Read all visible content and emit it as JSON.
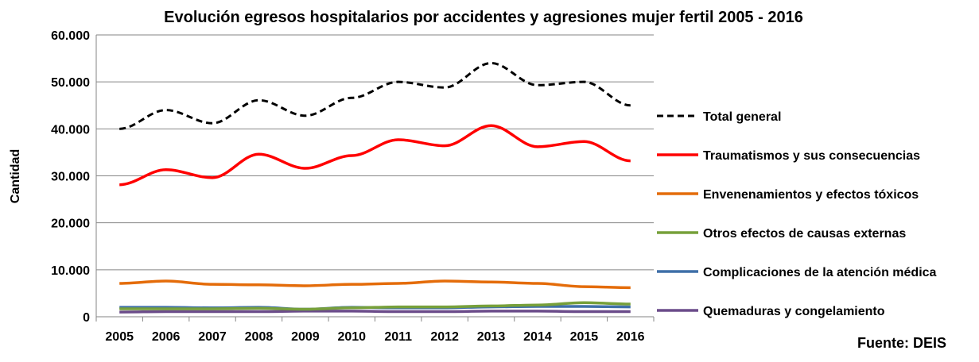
{
  "chart_data": {
    "type": "line",
    "title": "Evolución egresos hospitalarios por accidentes y agresiones mujer fertil 2005 - 2016",
    "xlabel": "",
    "ylabel": "Cantidad",
    "ylim": [
      0,
      60000
    ],
    "yticks": [
      0,
      10000,
      20000,
      30000,
      40000,
      50000,
      60000
    ],
    "ytick_labels": [
      "0",
      "10.000",
      "20.000",
      "30.000",
      "40.000",
      "50.000",
      "60.000"
    ],
    "grid": true,
    "legend_placement": "right",
    "source": "Fuente: DEIS",
    "categories": [
      "2005",
      "2006",
      "2007",
      "2008",
      "2009",
      "2010",
      "2011",
      "2012",
      "2013",
      "2014",
      "2015",
      "2016"
    ],
    "series": [
      {
        "name": "Total general",
        "color": "#000000",
        "dashed": true,
        "values": [
          40000,
          44000,
          41200,
          46100,
          42800,
          46600,
          50000,
          48800,
          54000,
          49300,
          50000,
          45000
        ]
      },
      {
        "name": "Traumatismos y sus consecuencias",
        "color": "#FF0000",
        "values": [
          28100,
          31300,
          29600,
          34600,
          31600,
          34300,
          37700,
          36400,
          40700,
          36200,
          37300,
          33200
        ]
      },
      {
        "name": "Envenenamientos y efectos tóxicos",
        "color": "#E46C0A",
        "values": [
          7100,
          7600,
          6900,
          6800,
          6600,
          6900,
          7100,
          7600,
          7400,
          7100,
          6400,
          6200
        ]
      },
      {
        "name": "Otros efectos de causas externas",
        "color": "#77A03A",
        "values": [
          1700,
          1700,
          1700,
          1800,
          1600,
          1900,
          2100,
          2100,
          2300,
          2500,
          3000,
          2700
        ]
      },
      {
        "name": "Complicaciones de la atención médica",
        "color": "#3F6FA8",
        "values": [
          2000,
          2000,
          1900,
          2000,
          1600,
          2000,
          1900,
          1900,
          2100,
          2200,
          2200,
          2100
        ]
      },
      {
        "name": "Quemaduras y congelamiento",
        "color": "#6B4C8A",
        "values": [
          1000,
          1100,
          1100,
          1100,
          1200,
          1200,
          1100,
          1100,
          1200,
          1200,
          1100,
          1100
        ]
      }
    ]
  }
}
